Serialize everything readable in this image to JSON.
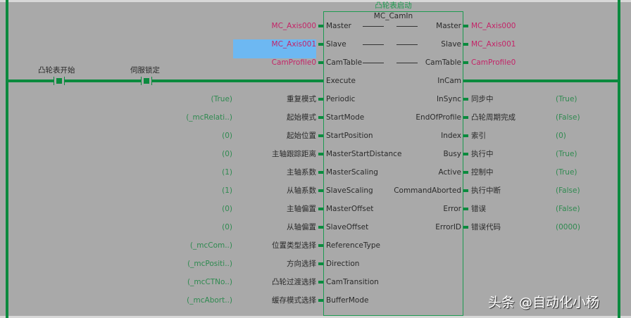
{
  "block": {
    "instance_label": "凸轮表启动",
    "type_name": "MC_CamIn"
  },
  "contacts": [
    {
      "label": "凸轮表开始"
    },
    {
      "label": "伺服锁定"
    }
  ],
  "selected_input": "MC_Axis001",
  "inout_pins": [
    {
      "in_var": "MC_Axis000",
      "pin_in": "Master",
      "pin_out": "Master",
      "out_var": "MC_Axis000"
    },
    {
      "in_var": "MC_Axis001",
      "pin_in": "Slave",
      "pin_out": "Slave",
      "out_var": "MC_Axis001"
    },
    {
      "in_var": "CamProfile0",
      "pin_in": "CamTable",
      "pin_out": "CamTable",
      "out_var": "CamProfile0"
    }
  ],
  "execute": {
    "pin_in": "Execute",
    "pin_out": "InCam"
  },
  "inputs": [
    {
      "value": "(True)",
      "label": "重复模式",
      "pin": "Periodic"
    },
    {
      "value": "(_mcRelati..)",
      "label": "起始模式",
      "pin": "StartMode"
    },
    {
      "value": "(0)",
      "label": "起始位置",
      "pin": "StartPosition"
    },
    {
      "value": "(0)",
      "label": "主轴跟踪距离",
      "pin": "MasterStartDistance"
    },
    {
      "value": "(1)",
      "label": "主轴系数",
      "pin": "MasterScaling"
    },
    {
      "value": "(1)",
      "label": "从轴系数",
      "pin": "SlaveScaling"
    },
    {
      "value": "(0)",
      "label": "主轴偏置",
      "pin": "MasterOffset"
    },
    {
      "value": "(0)",
      "label": "从轴偏置",
      "pin": "SlaveOffset"
    },
    {
      "value": "(_mcCom..)",
      "label": "位置类型选择",
      "pin": "ReferenceType"
    },
    {
      "value": "(_mcPositi..)",
      "label": "方向选择",
      "pin": "Direction"
    },
    {
      "value": "(_mcCTNo..)",
      "label": "凸轮过渡选择",
      "pin": "CamTransition"
    },
    {
      "value": "(_mcAbort..)",
      "label": "缓存模式选择",
      "pin": "BufferMode"
    }
  ],
  "outputs": [
    {
      "pin": "InSync",
      "label": "同步中",
      "value": "(True)"
    },
    {
      "pin": "EndOfProfile",
      "label": "凸轮周期完成",
      "value": "(False)"
    },
    {
      "pin": "Index",
      "label": "索引",
      "value": "(0)"
    },
    {
      "pin": "Busy",
      "label": "执行中",
      "value": "(True)"
    },
    {
      "pin": "Active",
      "label": "控制中",
      "value": "(True)"
    },
    {
      "pin": "CommandAborted",
      "label": "执行中断",
      "value": "(False)"
    },
    {
      "pin": "Error",
      "label": "错误",
      "value": "(False)"
    },
    {
      "pin": "ErrorID",
      "label": "错误代码",
      "value": "(0000)"
    }
  ],
  "watermark": "头条 @自动化小杨",
  "colors": {
    "rail": "#0b8a3e",
    "variable": "#c42468",
    "value": "#2f8a50",
    "selection": "#6db8f2",
    "background": "#a9a9a9"
  }
}
